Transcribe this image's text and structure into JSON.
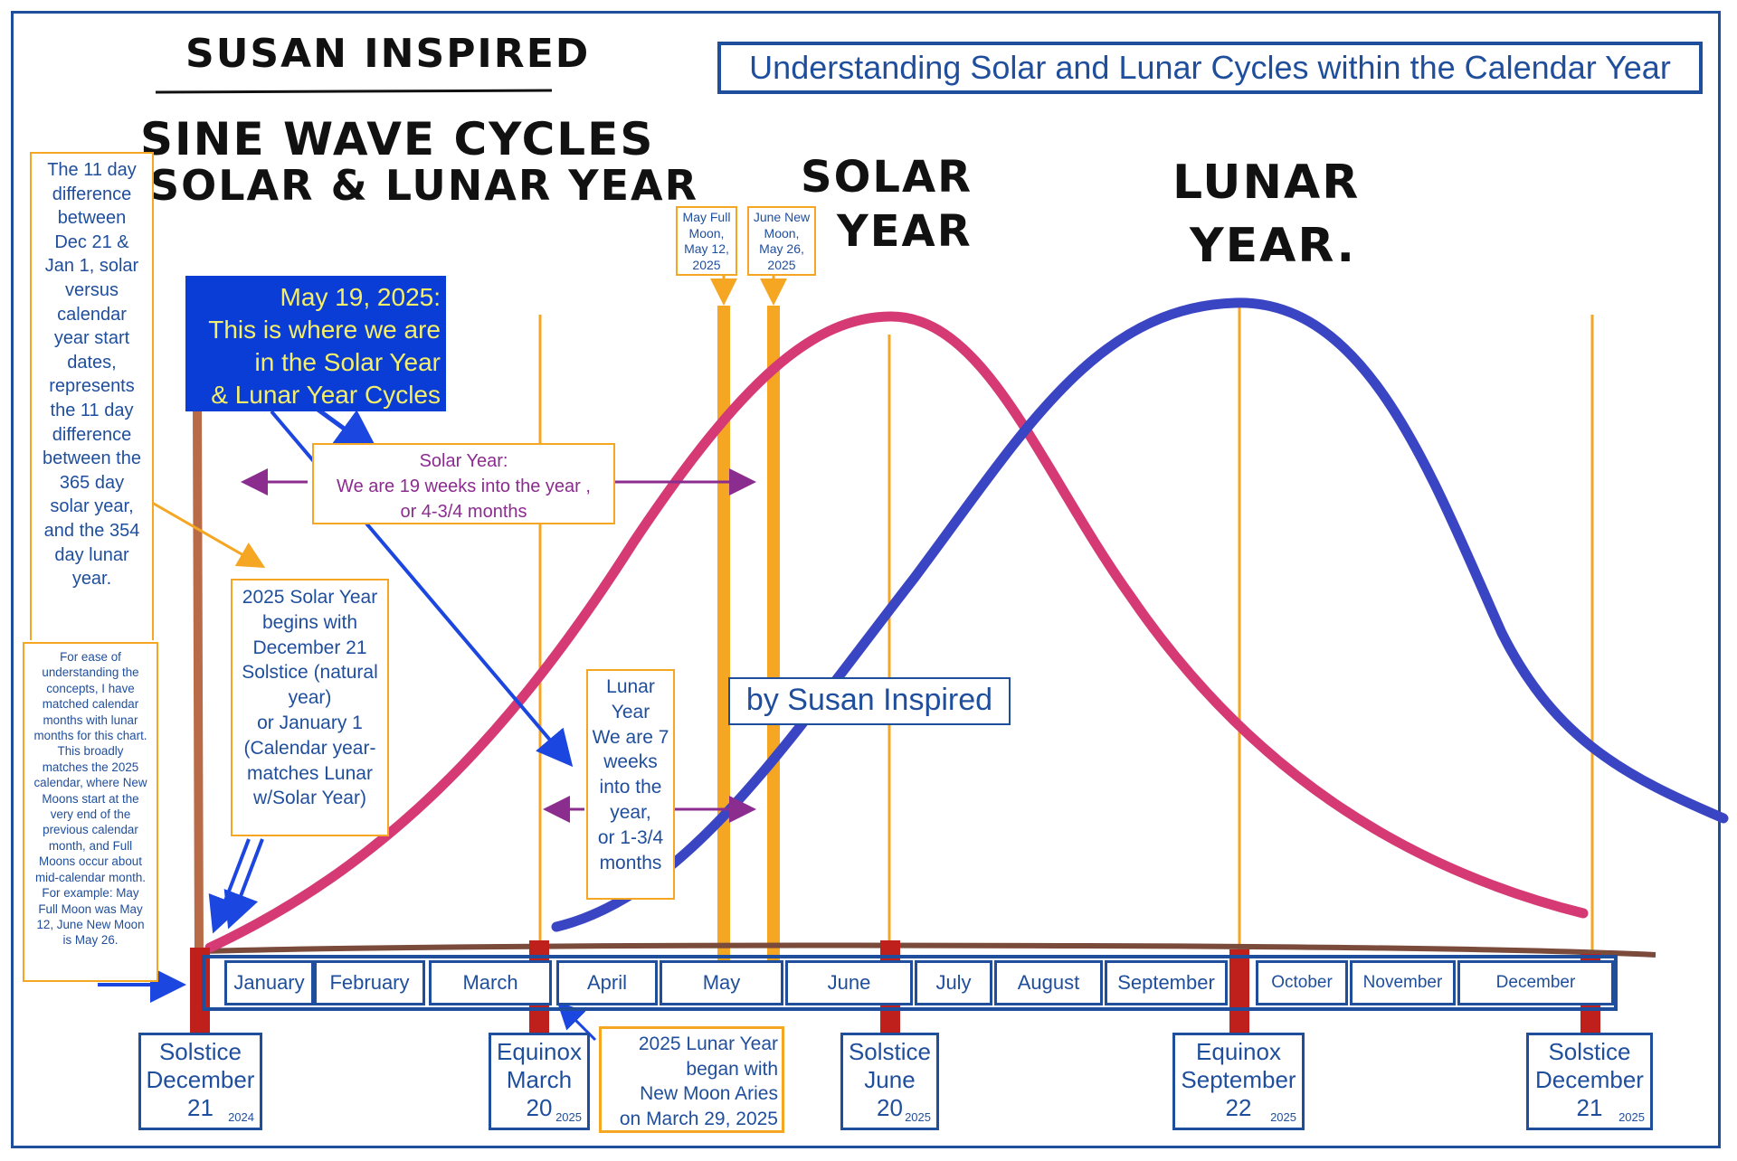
{
  "title": "Understanding Solar and Lunar Cycles within the Calendar Year",
  "handwritten": {
    "author": "SUSAN INSPIRED",
    "subtitle_line1": "SINE WAVE CYCLES",
    "subtitle_line2": "SOLAR & LUNAR YEAR",
    "solar_line1": "SOLAR",
    "solar_line2": "YEAR",
    "lunar_line1": "LUNAR",
    "lunar_line2": "YEAR."
  },
  "left_note_top": [
    "The 11 day",
    "difference",
    "between",
    "Dec 21 &",
    "Jan 1, solar",
    "versus",
    "calendar",
    "year start",
    "dates,",
    "represents",
    "the 11 day",
    "difference",
    "between the",
    "365 day",
    "solar year,",
    "and the 354",
    "day lunar",
    "year."
  ],
  "left_note_bottom": [
    "For ease of",
    "understanding the",
    "concepts, I have",
    "matched calendar",
    "months with lunar",
    "months for this chart.",
    "This broadly",
    "matches the 2025",
    "calendar, where New",
    "Moons start at the",
    "very end of the",
    "previous calendar",
    "month, and Full",
    "Moons occur about",
    "mid-calendar month.",
    "For example: May",
    "Full Moon was May",
    "12, June New Moon",
    "is May 26."
  ],
  "current_callout": [
    "May 19, 2025:",
    "This is where we are",
    "in the Solar Year",
    "& Lunar Year Cycles"
  ],
  "solar_year_note": [
    "Solar Year:",
    "We are 19 weeks into the year ,",
    "or 4-3/4 months"
  ],
  "solar_begins_note": [
    "2025 Solar Year",
    "begins with",
    "December 21",
    "Solstice (natural",
    "year)",
    "or January 1",
    "(Calendar year-",
    "matches Lunar",
    "w/Solar Year)"
  ],
  "lunar_year_note": [
    "Lunar",
    "Year",
    "We are 7",
    "weeks",
    "into the",
    "year,",
    "or 1-3/4",
    "months"
  ],
  "moon_labels": {
    "may_full": [
      "May Full",
      "Moon,",
      "May 12,",
      "2025"
    ],
    "june_new": [
      "June New",
      "Moon,",
      "May 26,",
      "2025"
    ]
  },
  "byline": "by Susan Inspired",
  "months": [
    "January",
    "February",
    "March",
    "April",
    "May",
    "June",
    "July",
    "August",
    "September",
    "October",
    "November",
    "December"
  ],
  "events": [
    {
      "line1": "Solstice",
      "line2": "December",
      "line3": "21",
      "year": "2024"
    },
    {
      "line1": "Equinox",
      "line2": "March",
      "line3": "20",
      "year": "2025"
    },
    {
      "line1": "Solstice",
      "line2": "June",
      "line3": "20",
      "year": "2025"
    },
    {
      "line1": "Equinox",
      "line2": "September",
      "line3": "22",
      "year": "2025"
    },
    {
      "line1": "Solstice",
      "line2": "December",
      "line3": "21",
      "year": "2025"
    }
  ],
  "lunar_start_note": [
    "2025 Lunar Year",
    "began with",
    "New Moon Aries",
    "on March 29, 2025"
  ],
  "colors": {
    "solar_curve": "#d63a74",
    "lunar_curve": "#3a45c4",
    "frame_blue": "#1f4e9c",
    "orange": "#f5a623",
    "red_marker": "#c0201b",
    "purple_arrow": "#8b2c8f",
    "callout_blue": "#0a3dd6",
    "callout_text": "#f4ef6a",
    "ground_line": "#7a4a3a"
  }
}
